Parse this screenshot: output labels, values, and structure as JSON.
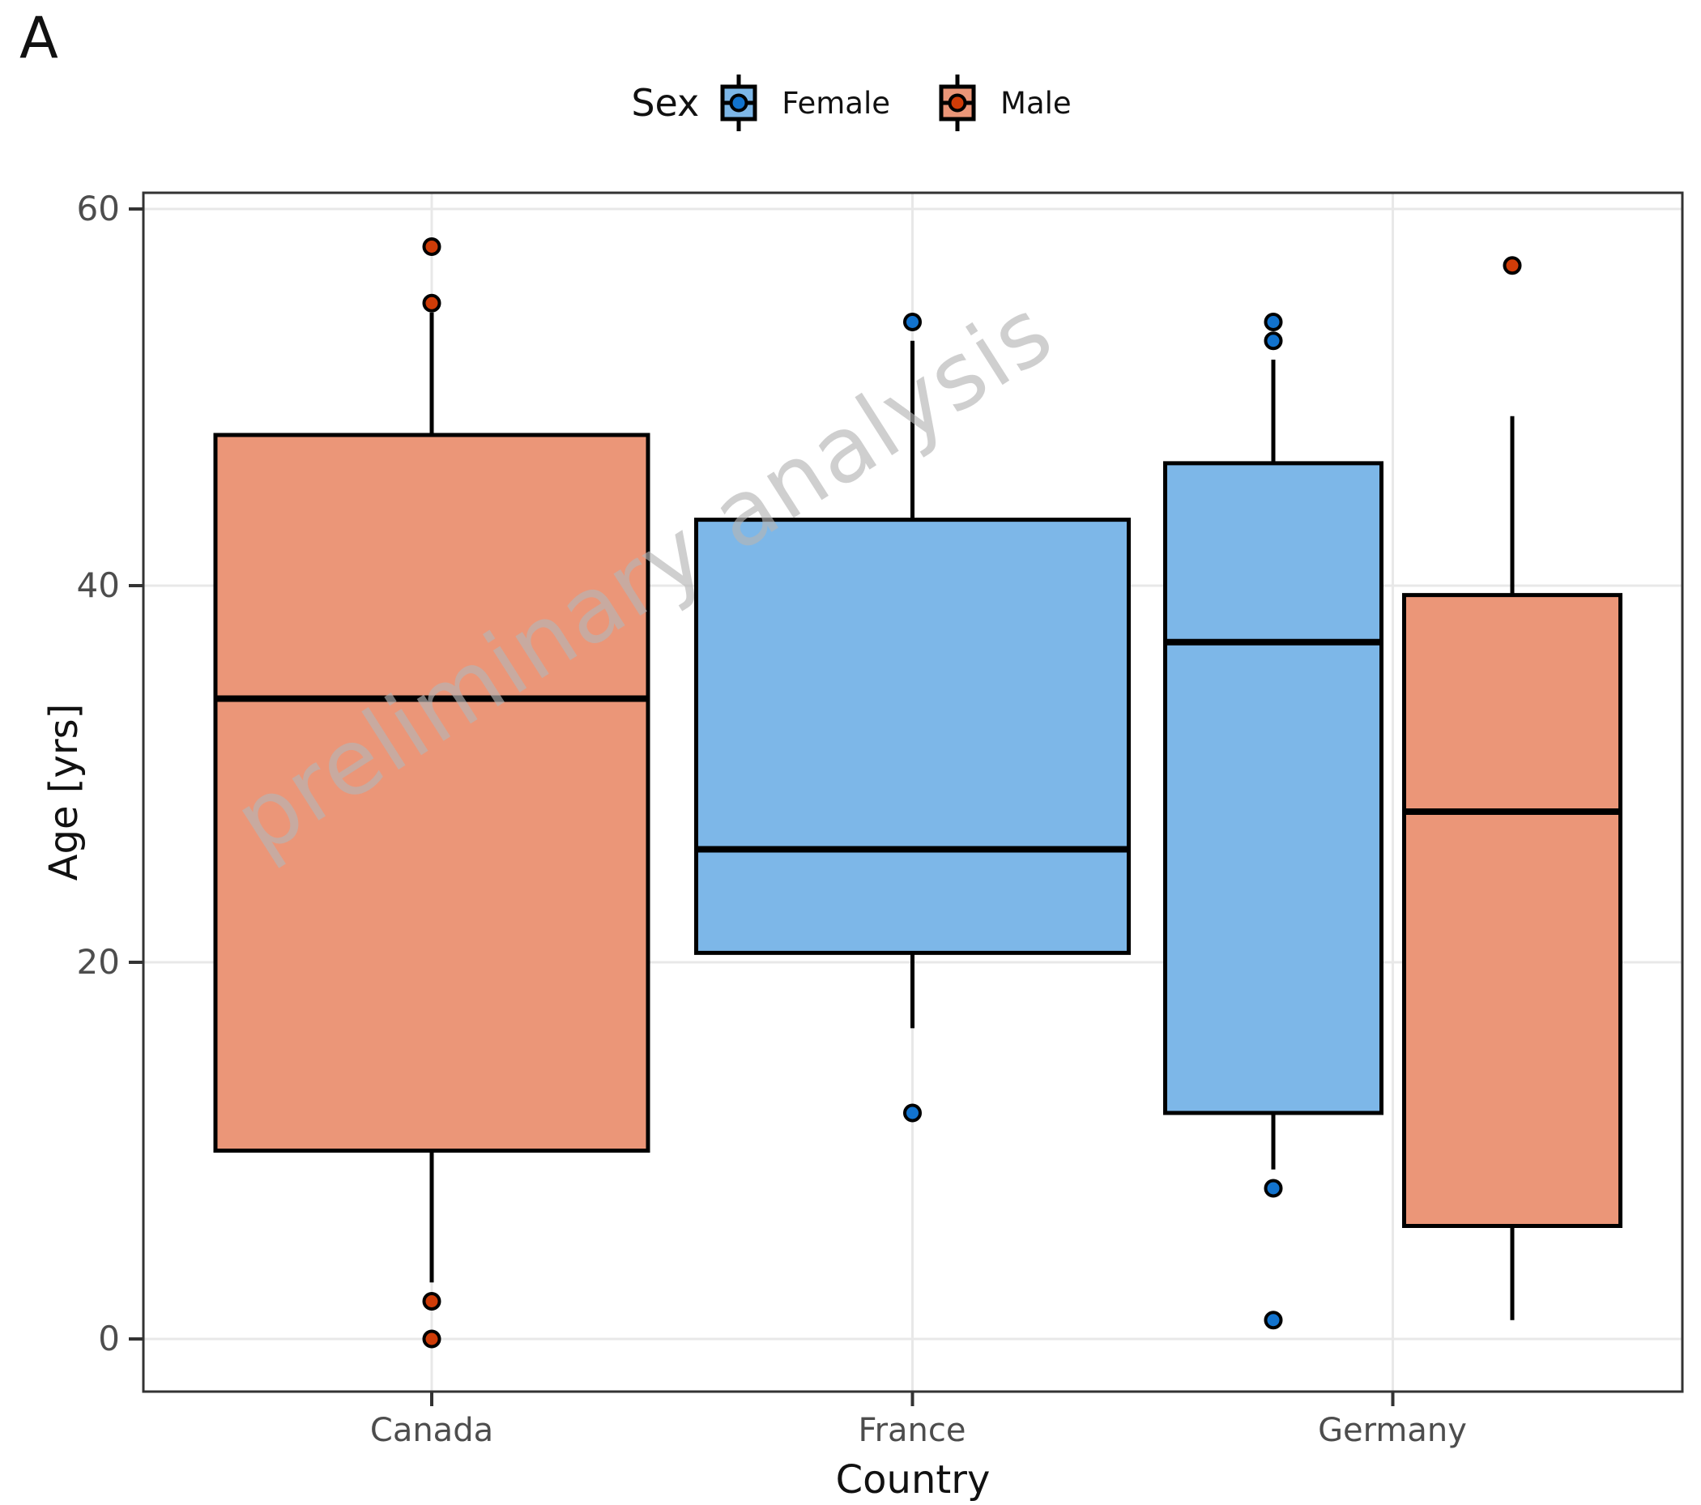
{
  "panel_label": "A",
  "watermark": "preliminary analysis",
  "legend": {
    "title": "Sex",
    "items": [
      {
        "label": "Female",
        "fill": "#7DB7E8",
        "point": "#1273CE"
      },
      {
        "label": "Male",
        "fill": "#EB9678",
        "point": "#CF3C08"
      }
    ]
  },
  "axes": {
    "y": {
      "title": "Age [yrs]",
      "ticks": [
        60,
        40,
        20,
        0
      ],
      "tick_labels": [
        "60",
        "40",
        "20",
        "0"
      ],
      "range": [
        -2.8,
        60.9
      ],
      "grid": "on"
    },
    "x": {
      "title": "Country",
      "categories": [
        "Canada",
        "France",
        "Germany"
      ]
    }
  },
  "colors": {
    "grid": "#E8E8E8",
    "axis": "#333333",
    "box_stroke": "#000000",
    "tick_label": "#4D4D4D",
    "background": "#FFFFFF"
  },
  "chart_data": {
    "type": "boxplot",
    "title": "",
    "xlabel": "Country",
    "ylabel": "Age [yrs]",
    "group_by": "Sex",
    "categories": [
      "Canada",
      "France",
      "Germany"
    ],
    "legend_position": "top-center",
    "ylim": [
      -2.8,
      60.9
    ],
    "boxes": [
      {
        "category": "Canada",
        "group": "Male",
        "whisker_low": 3,
        "q1": 10,
        "median": 34,
        "q3": 48,
        "whisker_high": 54.5,
        "points": [
          58,
          55,
          2,
          0
        ]
      },
      {
        "category": "France",
        "group": "Female",
        "whisker_low": 16.5,
        "q1": 20.5,
        "median": 26,
        "q3": 43.5,
        "whisker_high": 53,
        "points": [
          54,
          12
        ]
      },
      {
        "category": "Germany",
        "group": "Female",
        "whisker_low": 9,
        "q1": 12,
        "median": 37,
        "q3": 46.5,
        "whisker_high": 52,
        "points": [
          54,
          53,
          8,
          1
        ]
      },
      {
        "category": "Germany",
        "group": "Male",
        "whisker_low": 1,
        "q1": 6,
        "median": 28,
        "q3": 39.5,
        "whisker_high": 49,
        "points": [
          57
        ]
      }
    ]
  }
}
